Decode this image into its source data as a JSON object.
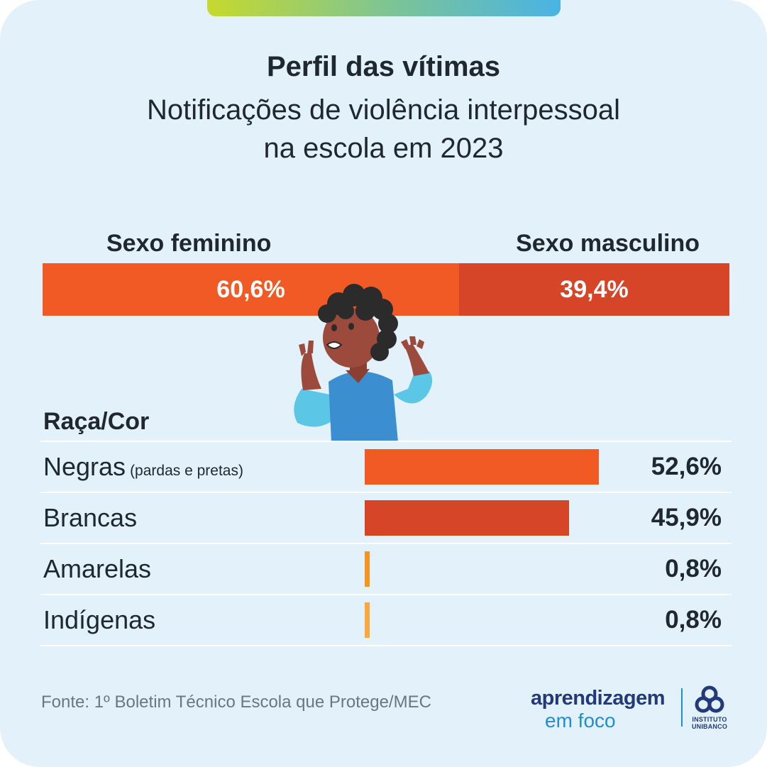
{
  "header": {
    "title": "Perfil das vítimas",
    "subtitle_lines": [
      "Notificações de violência interpessoal",
      "na escola em 2023"
    ]
  },
  "colors": {
    "background": "#e3f1fa",
    "female": "#f15a24",
    "male": "#d64527",
    "negras": "#f15a24",
    "brancas": "#d64527",
    "amarelas": "#f7941d",
    "indigenas": "#f9a73e"
  },
  "chart_data": [
    {
      "type": "bar",
      "orientation": "stacked-horizontal",
      "categories": [
        "Sexo feminino",
        "Sexo masculino"
      ],
      "values": [
        60.6,
        39.4
      ],
      "value_labels": [
        "60,6%",
        "39,4%"
      ],
      "unit": "%"
    },
    {
      "type": "bar",
      "orientation": "horizontal",
      "title": "Raça/Cor",
      "categories": [
        "Negras",
        "Brancas",
        "Amarelas",
        "Indígenas"
      ],
      "category_notes": [
        "(pardas e pretas)",
        "",
        "",
        ""
      ],
      "values": [
        52.6,
        45.9,
        0.8,
        0.8
      ],
      "value_labels": [
        "52,6%",
        "45,9%",
        "0,8%",
        "0,8%"
      ],
      "unit": "%",
      "grid": false
    }
  ],
  "footer": {
    "source": "Fonte: 1º Boletim Técnico Escola que Protege/MEC",
    "brand_name": "aprendizagem",
    "brand_sub": "em foco",
    "institute_line1": "INSTITUTO",
    "institute_line2": "UNIBANCO"
  },
  "illustration": {
    "icon": "distressed-student-illustration"
  }
}
